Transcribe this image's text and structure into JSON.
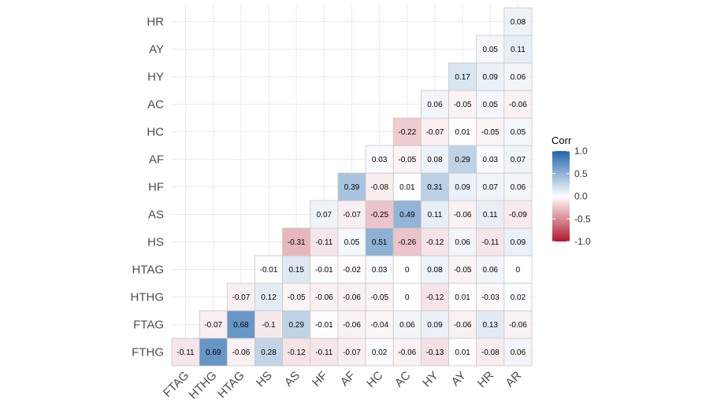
{
  "chart_data": {
    "type": "heatmap",
    "title": "",
    "xlabel": "",
    "ylabel": "",
    "x_categories": [
      "FTAG",
      "HTHG",
      "HTAG",
      "HS",
      "AS",
      "HF",
      "AF",
      "HC",
      "AC",
      "HY",
      "AY",
      "HR",
      "AR"
    ],
    "y_categories": [
      "FTHG",
      "FTAG",
      "HTHG",
      "HTAG",
      "HS",
      "AS",
      "HF",
      "AF",
      "HC",
      "AC",
      "HY",
      "AY",
      "HR"
    ],
    "rows": [
      {
        "name": "FTHG",
        "values": [
          -0.11,
          0.69,
          -0.06,
          0.28,
          -0.12,
          -0.11,
          -0.07,
          0.02,
          -0.06,
          -0.13,
          0.01,
          -0.08,
          0.06
        ]
      },
      {
        "name": "FTAG",
        "values": [
          -0.07,
          0.68,
          -0.1,
          0.29,
          -0.01,
          -0.06,
          -0.04,
          0.06,
          0.09,
          -0.06,
          0.13,
          -0.06
        ]
      },
      {
        "name": "HTHG",
        "values": [
          -0.07,
          0.12,
          -0.05,
          -0.06,
          -0.06,
          -0.05,
          0,
          -0.12,
          0.01,
          -0.03,
          0.02
        ]
      },
      {
        "name": "HTAG",
        "values": [
          -0.01,
          0.15,
          -0.01,
          -0.02,
          0.03,
          0,
          0.08,
          -0.05,
          0.06,
          0
        ]
      },
      {
        "name": "HS",
        "values": [
          -0.31,
          -0.11,
          0.05,
          0.51,
          -0.26,
          -0.12,
          0.06,
          -0.11,
          0.09
        ]
      },
      {
        "name": "AS",
        "values": [
          0.07,
          -0.07,
          -0.25,
          0.49,
          0.11,
          -0.06,
          0.11,
          -0.09
        ]
      },
      {
        "name": "HF",
        "values": [
          0.39,
          -0.08,
          0.01,
          0.31,
          0.09,
          0.07,
          0.06
        ]
      },
      {
        "name": "AF",
        "values": [
          0.03,
          -0.05,
          0.08,
          0.29,
          0.03,
          0.07
        ]
      },
      {
        "name": "HC",
        "values": [
          -0.22,
          -0.07,
          0.01,
          -0.05,
          0.05
        ]
      },
      {
        "name": "AC",
        "values": [
          0.06,
          -0.05,
          0.05,
          -0.06
        ]
      },
      {
        "name": "HY",
        "values": [
          0.17,
          0.09,
          0.06
        ]
      },
      {
        "name": "AY",
        "values": [
          0.05,
          0.11
        ]
      },
      {
        "name": "HR",
        "values": [
          0.08
        ]
      }
    ],
    "value_range": [
      -1,
      1
    ],
    "grid": true,
    "legend": {
      "title": "Corr",
      "placement": "right",
      "ticks": [
        "1.0",
        "0.5",
        "0.0",
        "-0.5",
        "-1.0"
      ],
      "colors": {
        "low": "#B2182B",
        "mid": "#FFFFFF",
        "high": "#2166AC"
      }
    }
  }
}
